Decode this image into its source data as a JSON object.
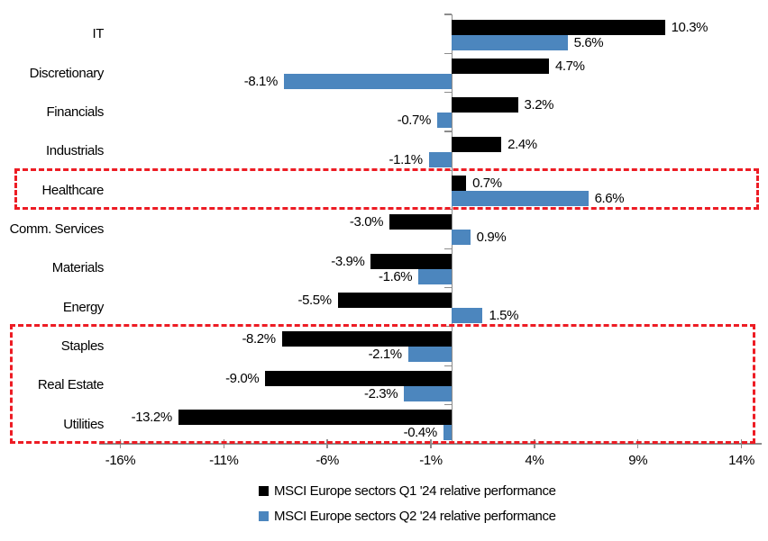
{
  "chart_data": {
    "type": "bar",
    "orientation": "horizontal",
    "title": "",
    "xlabel": "",
    "ylabel": "",
    "grid": false,
    "legend_position": "bottom",
    "categories": [
      "IT",
      "Discretionary",
      "Financials",
      "Industrials",
      "Healthcare",
      "Comm. Services",
      "Materials",
      "Energy",
      "Staples",
      "Real Estate",
      "Utilities"
    ],
    "series": [
      {
        "name": "MSCI Europe sectors Q1 '24 relative performance",
        "color": "#000000",
        "values": [
          10.3,
          4.7,
          3.2,
          2.4,
          0.7,
          -3.0,
          -3.9,
          -5.5,
          -8.2,
          -9.0,
          -13.2
        ]
      },
      {
        "name": "MSCI Europe sectors Q2 '24 relative performance",
        "color": "#4c86be",
        "values": [
          5.6,
          -8.1,
          -0.7,
          -1.1,
          6.6,
          0.9,
          -1.6,
          1.5,
          -2.1,
          -2.3,
          -0.4
        ]
      }
    ],
    "value_labels_format": "one-decimal-percent",
    "x_ticks": {
      "labels": [
        "-16%",
        "-11%",
        "-6%",
        "-1%",
        "4%",
        "9%",
        "14%"
      ],
      "values": [
        -16,
        -11,
        -6,
        -1,
        4,
        9,
        14
      ]
    },
    "xlim": [
      -17,
      15
    ],
    "highlight_boxes": [
      {
        "categories": [
          "Healthcare"
        ],
        "color": "#ed1c24",
        "style": "dashed"
      },
      {
        "categories": [
          "Staples",
          "Real Estate",
          "Utilities"
        ],
        "color": "#ed1c24",
        "style": "dashed"
      }
    ]
  },
  "colors": {
    "q1_bar": "#000000",
    "q2_bar": "#4c86be",
    "highlight": "#ed1c24",
    "axis": "#8c8c8c",
    "text": "#000000",
    "background": "#ffffff"
  }
}
